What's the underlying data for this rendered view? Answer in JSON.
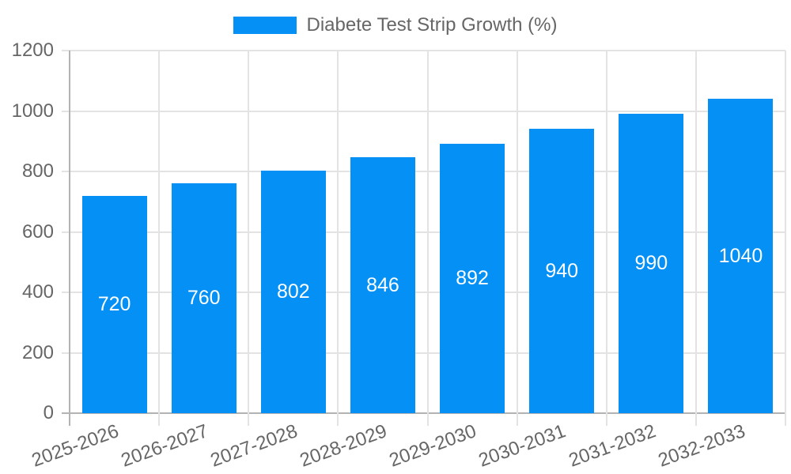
{
  "legend": {
    "label": "Diabete Test Strip Growth (%)",
    "swatch_icon": "rect-swatch-icon"
  },
  "chart_data": {
    "type": "bar",
    "title": "Diabete Test Strip Growth (%)",
    "categories": [
      "2025-2026",
      "2026-2027",
      "2027-2028",
      "2028-2029",
      "2029-2030",
      "2030-2031",
      "2031-2032",
      "2032-2033"
    ],
    "values": [
      720,
      760,
      802,
      846,
      892,
      940,
      990,
      1040
    ],
    "xlabel": "",
    "ylabel": "",
    "ylim": [
      0,
      1200
    ],
    "yticks": [
      0,
      200,
      400,
      600,
      800,
      1000,
      1200
    ],
    "legend_position": "top-center",
    "grid": true,
    "bar_value_labels_position": "center-of-bar",
    "x_tick_label_rotation_deg": -20,
    "colors": {
      "bar": "#0490F5",
      "axis_text": "#666666",
      "gridline": "#e3e3e3",
      "zero_line": "#b3b3b3",
      "value_label": "#ffffff",
      "background": "#ffffff"
    }
  }
}
